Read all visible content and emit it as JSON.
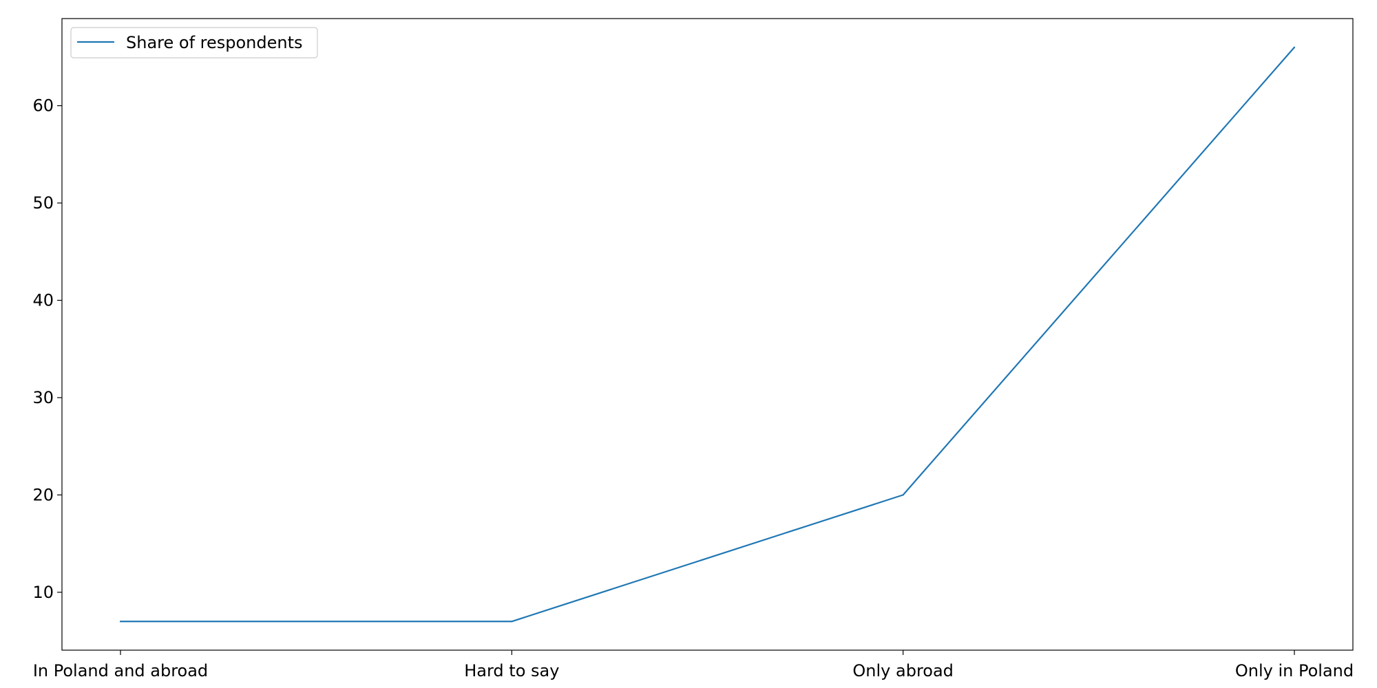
{
  "chart_data": {
    "type": "line",
    "title": "",
    "xlabel": "",
    "ylabel": "",
    "categories": [
      "In Poland and abroad",
      "Hard to say",
      "Only abroad",
      "Only in Poland"
    ],
    "series": [
      {
        "name": "Share of respondents",
        "values": [
          7,
          7,
          20,
          66
        ],
        "color": "#1f77b4"
      }
    ],
    "yticks": [
      10,
      20,
      30,
      40,
      50,
      60
    ],
    "ylim": [
      4.05,
      68.95
    ],
    "grid": false,
    "legend_position": "top-left"
  }
}
